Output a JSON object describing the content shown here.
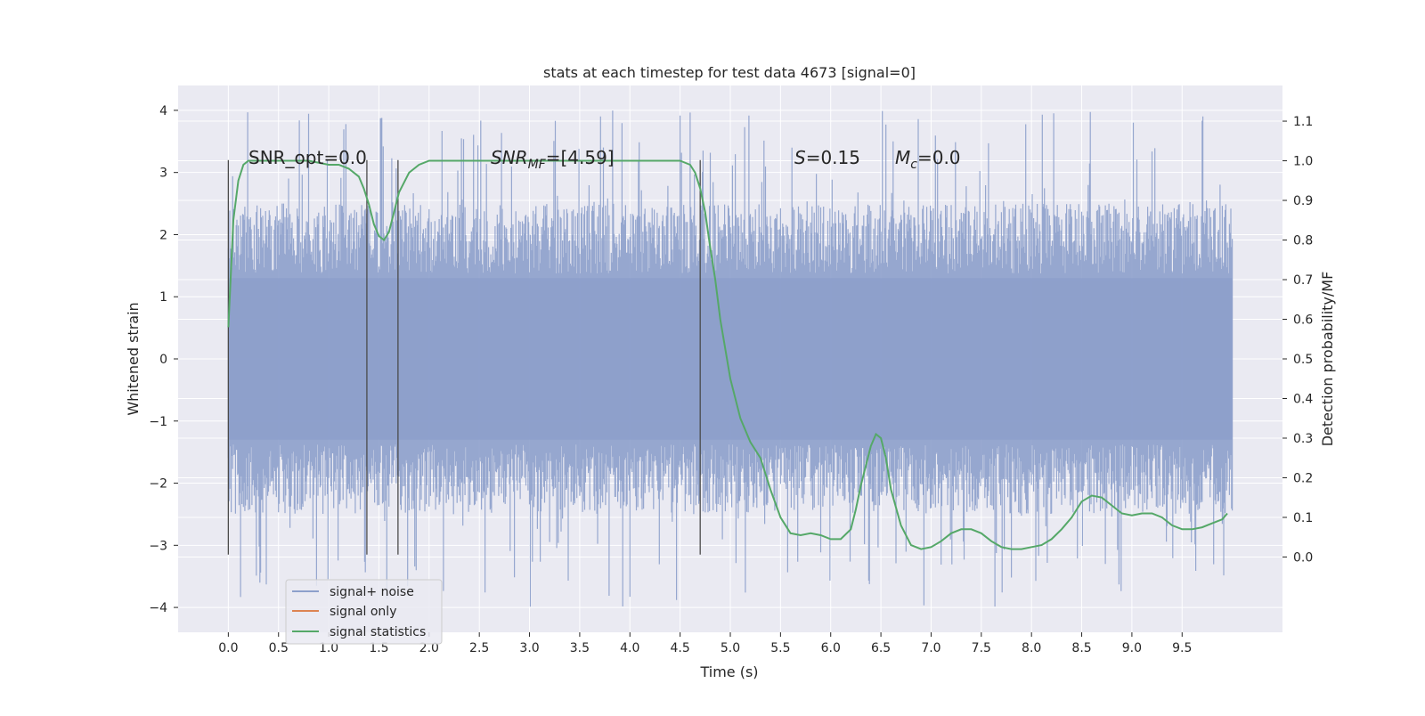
{
  "chart_data": {
    "type": "line",
    "title": "stats at each timestep for test data 4673 [signal=0]",
    "xlabel": "Time (s)",
    "ylabel_left": "Whitened strain",
    "ylabel_right": "Detection probability/MF",
    "xlim": [
      -0.5,
      10.5
    ],
    "ylim_left": [
      -4.4,
      4.4
    ],
    "ylim_right": [
      -0.19,
      1.19
    ],
    "x_ticks": [
      "0.0",
      "0.5",
      "1.0",
      "1.5",
      "2.0",
      "2.5",
      "3.0",
      "3.5",
      "4.0",
      "4.5",
      "5.0",
      "5.5",
      "6.0",
      "6.5",
      "7.0",
      "7.5",
      "8.0",
      "8.5",
      "9.0",
      "9.5"
    ],
    "y_ticks_left": [
      "−4",
      "−3",
      "−2",
      "−1",
      "0",
      "1",
      "2",
      "3",
      "4"
    ],
    "y_ticks_right": [
      "0.0",
      "0.1",
      "0.2",
      "0.3",
      "0.4",
      "0.5",
      "0.6",
      "0.7",
      "0.8",
      "0.9",
      "1.0",
      "1.1"
    ],
    "grid": true,
    "legend_position": "lower-left",
    "legend": [
      "signal+ noise",
      "signal only",
      "signal statistics"
    ],
    "annotations": {
      "snr_opt": "SNR_opt=0.0",
      "snr_mf_main": "SNR",
      "snr_mf_sub": "MF",
      "snr_mf_rest": "=[4.59]",
      "s_italic": "S",
      "s_rest": "=0.15",
      "mc_italic": "M",
      "mc_sub": "c",
      "mc_rest": "=0.0"
    },
    "colors": {
      "noise": "#8da0cb",
      "signal_only": "#dd8452",
      "statistics": "#55a868",
      "vlines": "#4a4a4a",
      "background": "#eaeaf2",
      "grid": "#ffffff"
    },
    "noise_band": {
      "x_range": [
        0.0,
        10.0
      ],
      "dense_range": [
        -2.5,
        2.5
      ],
      "spike_range": [
        -4.0,
        4.0
      ]
    },
    "vlines_x": [
      0.0,
      1.38,
      1.69,
      4.7
    ],
    "vlines_yrange": [
      -3.15,
      3.2
    ],
    "series": [
      {
        "name": "signal statistics",
        "x": [
          0.0,
          0.05,
          0.1,
          0.15,
          0.2,
          0.3,
          0.5,
          0.8,
          1.0,
          1.1,
          1.2,
          1.3,
          1.35,
          1.4,
          1.45,
          1.5,
          1.55,
          1.6,
          1.65,
          1.7,
          1.8,
          1.9,
          2.0,
          2.2,
          2.5,
          3.0,
          3.5,
          4.0,
          4.3,
          4.5,
          4.6,
          4.65,
          4.7,
          4.75,
          4.8,
          4.85,
          4.9,
          5.0,
          5.1,
          5.2,
          5.3,
          5.4,
          5.5,
          5.6,
          5.7,
          5.8,
          5.9,
          6.0,
          6.1,
          6.2,
          6.25,
          6.3,
          6.4,
          6.45,
          6.5,
          6.55,
          6.6,
          6.7,
          6.8,
          6.9,
          7.0,
          7.1,
          7.2,
          7.3,
          7.4,
          7.5,
          7.6,
          7.7,
          7.8,
          7.9,
          8.0,
          8.1,
          8.2,
          8.3,
          8.4,
          8.5,
          8.6,
          8.7,
          8.8,
          8.9,
          9.0,
          9.1,
          9.2,
          9.3,
          9.4,
          9.5,
          9.6,
          9.7,
          9.8,
          9.9,
          9.95
        ],
        "y": [
          0.58,
          0.85,
          0.95,
          0.99,
          1.0,
          1.0,
          1.0,
          1.0,
          0.99,
          0.99,
          0.98,
          0.96,
          0.93,
          0.89,
          0.84,
          0.81,
          0.8,
          0.82,
          0.87,
          0.92,
          0.97,
          0.99,
          1.0,
          1.0,
          1.0,
          1.0,
          1.0,
          1.0,
          1.0,
          1.0,
          0.99,
          0.97,
          0.93,
          0.87,
          0.78,
          0.7,
          0.6,
          0.45,
          0.35,
          0.29,
          0.25,
          0.17,
          0.1,
          0.06,
          0.055,
          0.06,
          0.055,
          0.045,
          0.045,
          0.07,
          0.12,
          0.18,
          0.28,
          0.31,
          0.3,
          0.25,
          0.17,
          0.08,
          0.03,
          0.02,
          0.025,
          0.04,
          0.06,
          0.07,
          0.07,
          0.06,
          0.04,
          0.025,
          0.02,
          0.02,
          0.025,
          0.03,
          0.045,
          0.07,
          0.1,
          0.14,
          0.155,
          0.15,
          0.13,
          0.11,
          0.105,
          0.11,
          0.11,
          0.1,
          0.08,
          0.07,
          0.07,
          0.075,
          0.085,
          0.095,
          0.11
        ]
      }
    ]
  }
}
